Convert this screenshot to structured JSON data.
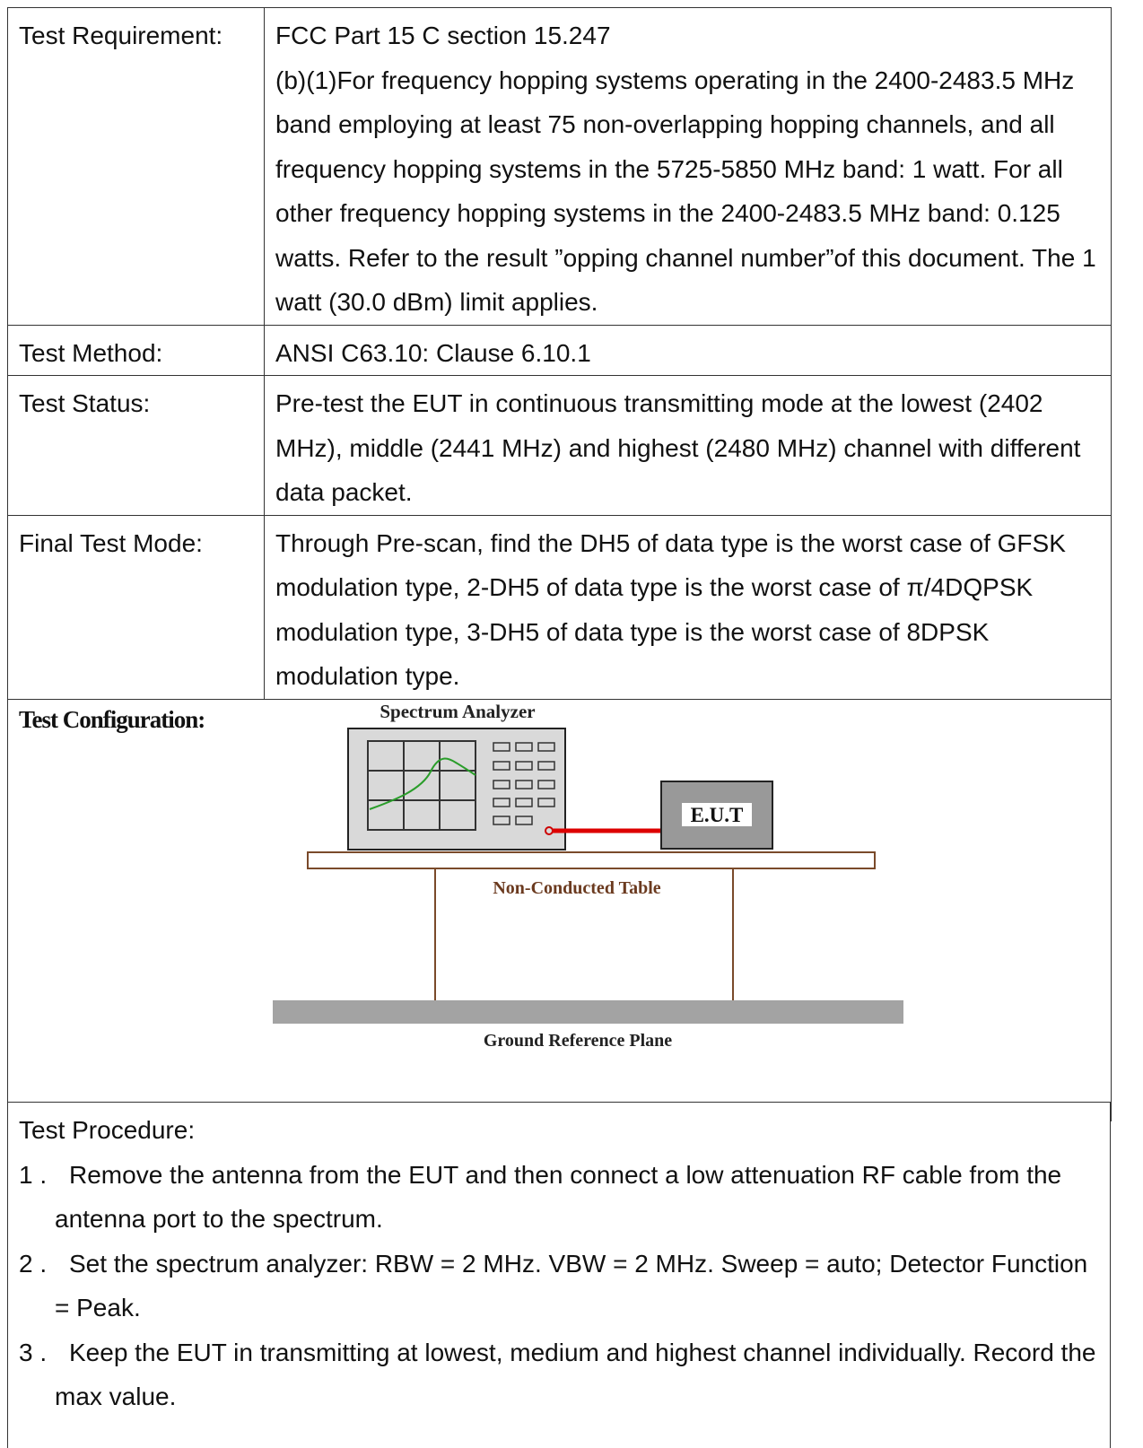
{
  "rows": [
    {
      "label": "Test Requirement:",
      "content": [
        "FCC Part 15 C section 15.247",
        "(b)(1)For frequency hopping systems operating in the 2400-2483.5 MHz band employing at least 75 non-overlapping hopping channels, and all frequency hopping systems in the 5725-5850 MHz band: 1 watt. For all other frequency hopping systems in the 2400-2483.5 MHz band: 0.125 watts. Refer to the result ”opping channel number”of this document. The 1 watt (30.0 dBm) limit applies."
      ]
    },
    {
      "label": "Test Method:",
      "content": [
        "ANSI C63.10: Clause 6.10.1"
      ]
    },
    {
      "label": "Test Status:",
      "content": [
        "Pre-test the EUT in continuous transmitting mode at the lowest (2402 MHz), middle (2441 MHz) and highest (2480 MHz) channel with different data packet."
      ]
    },
    {
      "label": "Final Test Mode:",
      "content": [
        "Through Pre-scan, find the DH5 of data type is the worst case of GFSK modulation type, 2-DH5 of data type is the worst case of π/4DQPSK modulation type, 3-DH5 of data type is the worst case of 8DPSK modulation type."
      ]
    }
  ],
  "test_configuration": {
    "label": "Test Configuration:",
    "diagram": {
      "spectrum_analyzer": "Spectrum Analyzer",
      "eut": "E.U.T",
      "table": "Non-Conducted Table",
      "ground": "Ground Reference Plane"
    }
  },
  "procedure": {
    "title": "Test Procedure:",
    "steps": [
      {
        "number": "1 .",
        "text": "Remove the antenna from the EUT and then connect a low attenuation RF cable from the antenna port to the spectrum."
      },
      {
        "number": "2 .",
        "text": "Set the spectrum analyzer: RBW = 2 MHz. VBW = 2 MHz. Sweep = auto; Detector Function = Peak."
      },
      {
        "number": "3 .",
        "text": "Keep the EUT in transmitting at lowest, medium and highest channel individually. Record the max value."
      }
    ]
  }
}
